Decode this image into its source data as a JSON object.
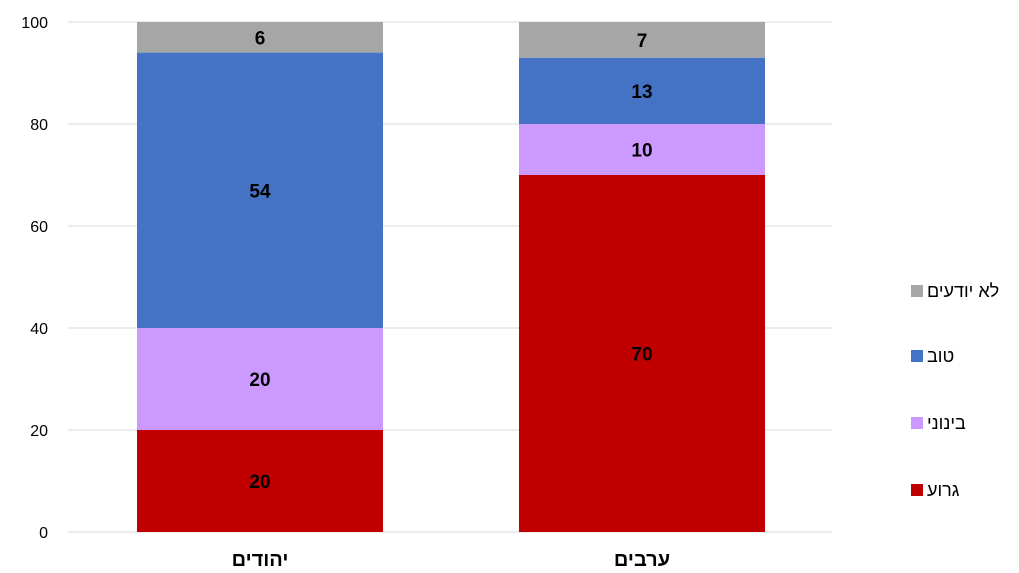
{
  "chart_data": {
    "type": "bar",
    "stacked": true,
    "categories": [
      "יהודים",
      "ערבים"
    ],
    "series": [
      {
        "name": "גרוע",
        "color": "#C00000",
        "values": [
          20,
          70
        ]
      },
      {
        "name": "בינוני",
        "color": "#CC99FF",
        "values": [
          20,
          10
        ]
      },
      {
        "name": "טוב",
        "color": "#4472C4",
        "values": [
          54,
          13
        ]
      },
      {
        "name": "לא יודעים",
        "color": "#A6A6A6",
        "values": [
          6,
          7
        ]
      }
    ],
    "ylim": [
      0,
      100
    ],
    "yticks": [
      0,
      20,
      40,
      60,
      80,
      100
    ],
    "grid": true,
    "legend_position": "right",
    "legend_order": [
      "לא יודעים",
      "טוב",
      "בינוני",
      "גרוע"
    ]
  }
}
